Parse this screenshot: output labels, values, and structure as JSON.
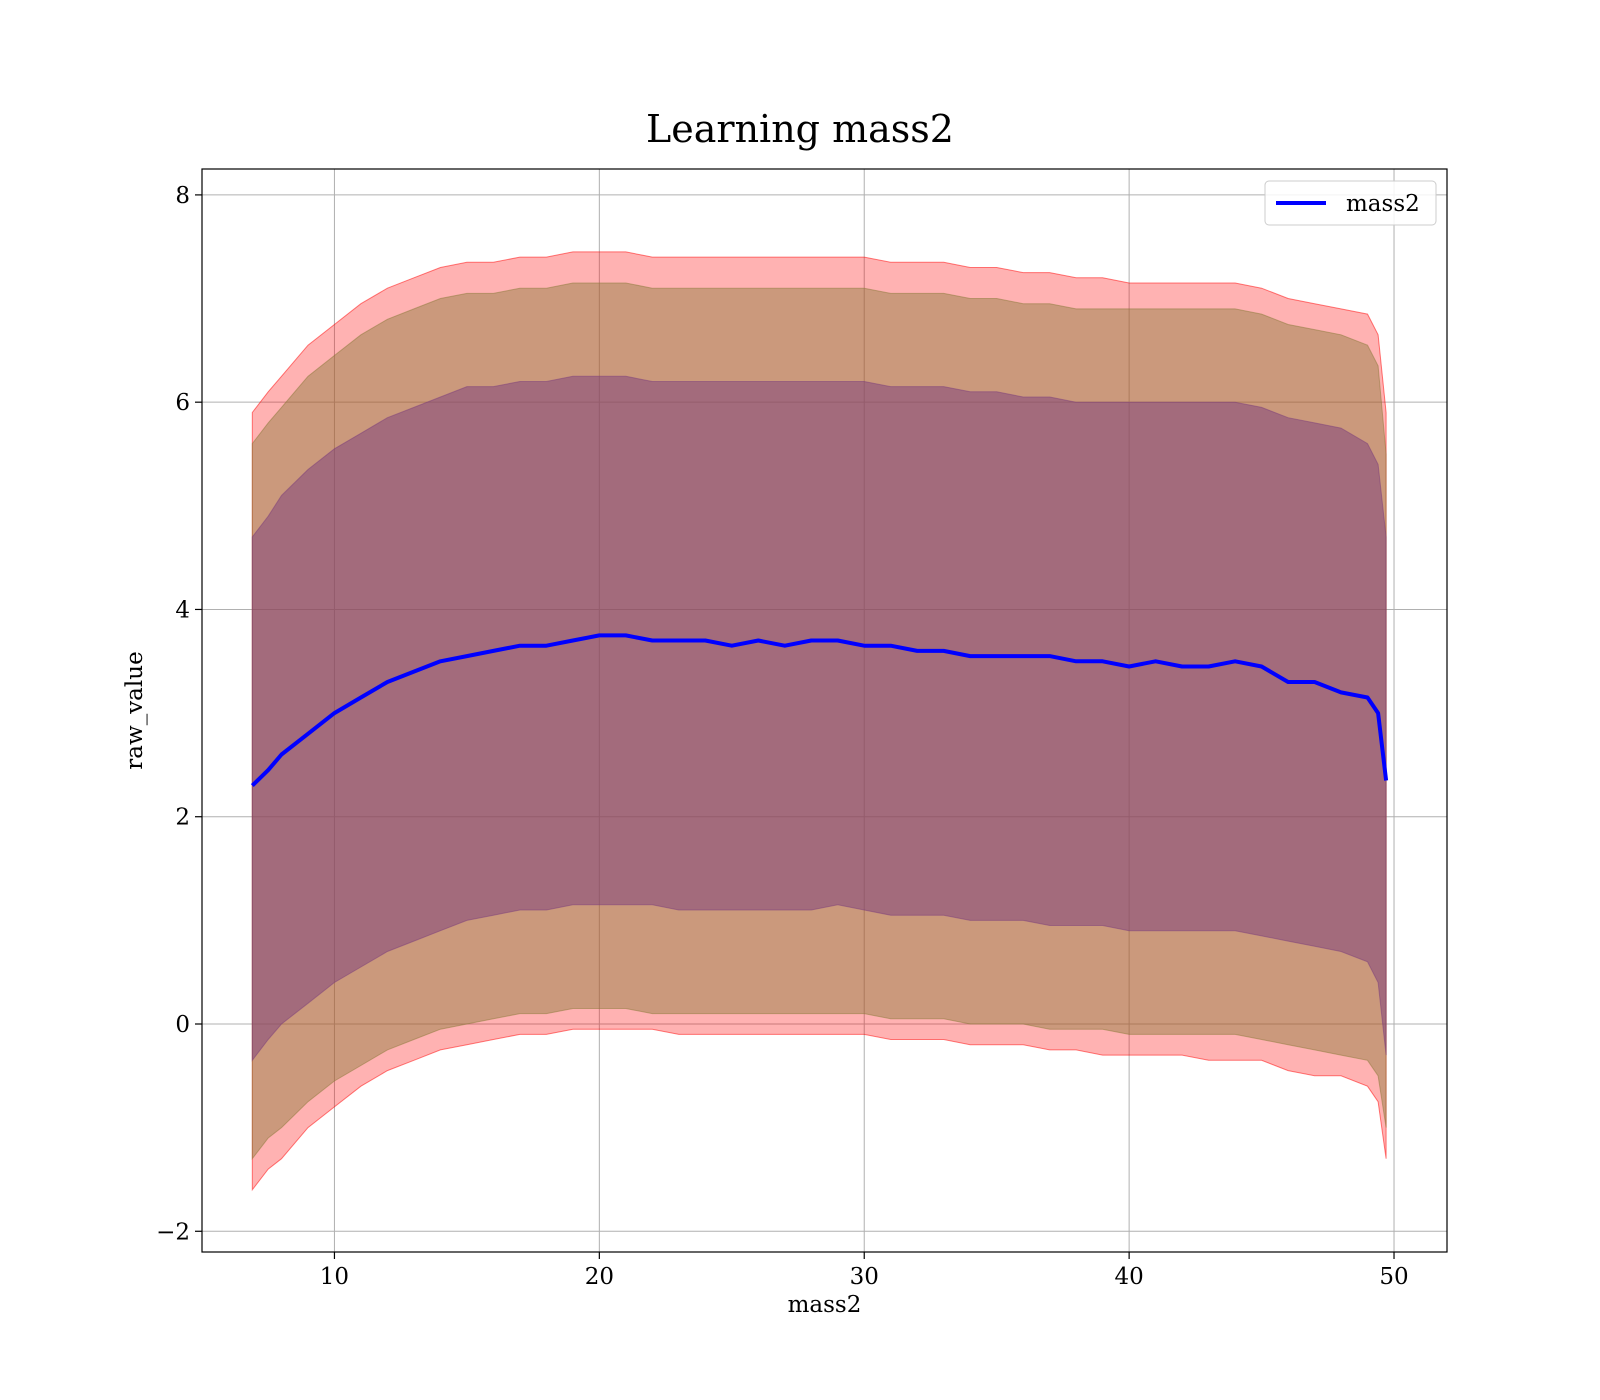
{
  "chart_data": {
    "type": "line",
    "title": "Learning mass2",
    "xlabel": "mass2",
    "ylabel": "raw_value",
    "xlim": [
      5,
      52
    ],
    "ylim": [
      -2.2,
      8.25
    ],
    "xticks": [
      10,
      20,
      30,
      40,
      50
    ],
    "yticks": [
      -2,
      0,
      2,
      4,
      6,
      8
    ],
    "xtick_labels": [
      "10",
      "20",
      "30",
      "40",
      "50"
    ],
    "ytick_labels": [
      "−2",
      "0",
      "2",
      "4",
      "6",
      "8"
    ],
    "grid": true,
    "legend": {
      "position": "top-right",
      "entries": [
        "mass2"
      ]
    },
    "colors": {
      "line": "#0000ff",
      "outer_band": "#ff0000",
      "middle_band": "#8b7a3a",
      "inner_band": "#7b3d7b"
    },
    "x": [
      6.9,
      7.5,
      8,
      9,
      10,
      11,
      12,
      13,
      14,
      15,
      16,
      17,
      18,
      19,
      20,
      21,
      22,
      23,
      24,
      25,
      26,
      27,
      28,
      29,
      30,
      31,
      32,
      33,
      34,
      35,
      36,
      37,
      38,
      39,
      40,
      41,
      42,
      43,
      44,
      45,
      46,
      47,
      48,
      49,
      49.4,
      49.7
    ],
    "series": [
      {
        "name": "mass2",
        "values": [
          2.3,
          2.45,
          2.6,
          2.8,
          3.0,
          3.15,
          3.3,
          3.4,
          3.5,
          3.55,
          3.6,
          3.65,
          3.65,
          3.7,
          3.75,
          3.75,
          3.7,
          3.7,
          3.7,
          3.65,
          3.7,
          3.65,
          3.7,
          3.7,
          3.65,
          3.65,
          3.6,
          3.6,
          3.55,
          3.55,
          3.55,
          3.55,
          3.5,
          3.5,
          3.45,
          3.5,
          3.45,
          3.45,
          3.5,
          3.45,
          3.3,
          3.3,
          3.2,
          3.15,
          3.0,
          2.35
        ]
      }
    ],
    "bands": [
      {
        "role": "outer",
        "lower": [
          -1.6,
          -1.4,
          -1.3,
          -1.0,
          -0.8,
          -0.6,
          -0.45,
          -0.35,
          -0.25,
          -0.2,
          -0.15,
          -0.1,
          -0.1,
          -0.05,
          -0.05,
          -0.05,
          -0.05,
          -0.1,
          -0.1,
          -0.1,
          -0.1,
          -0.1,
          -0.1,
          -0.1,
          -0.1,
          -0.15,
          -0.15,
          -0.15,
          -0.2,
          -0.2,
          -0.2,
          -0.25,
          -0.25,
          -0.3,
          -0.3,
          -0.3,
          -0.3,
          -0.35,
          -0.35,
          -0.35,
          -0.45,
          -0.5,
          -0.5,
          -0.6,
          -0.75,
          -1.3
        ],
        "upper": [
          5.9,
          6.1,
          6.25,
          6.55,
          6.75,
          6.95,
          7.1,
          7.2,
          7.3,
          7.35,
          7.35,
          7.4,
          7.4,
          7.45,
          7.45,
          7.45,
          7.4,
          7.4,
          7.4,
          7.4,
          7.4,
          7.4,
          7.4,
          7.4,
          7.4,
          7.35,
          7.35,
          7.35,
          7.3,
          7.3,
          7.25,
          7.25,
          7.2,
          7.2,
          7.15,
          7.15,
          7.15,
          7.15,
          7.15,
          7.1,
          7.0,
          6.95,
          6.9,
          6.85,
          6.65,
          5.9
        ]
      },
      {
        "role": "middle",
        "lower": [
          -1.3,
          -1.1,
          -1.0,
          -0.75,
          -0.55,
          -0.4,
          -0.25,
          -0.15,
          -0.05,
          0.0,
          0.05,
          0.1,
          0.1,
          0.15,
          0.15,
          0.15,
          0.1,
          0.1,
          0.1,
          0.1,
          0.1,
          0.1,
          0.1,
          0.1,
          0.1,
          0.05,
          0.05,
          0.05,
          0.0,
          0.0,
          0.0,
          -0.05,
          -0.05,
          -0.05,
          -0.1,
          -0.1,
          -0.1,
          -0.1,
          -0.1,
          -0.15,
          -0.2,
          -0.25,
          -0.3,
          -0.35,
          -0.5,
          -1.0
        ],
        "upper": [
          5.6,
          5.8,
          5.95,
          6.25,
          6.45,
          6.65,
          6.8,
          6.9,
          7.0,
          7.05,
          7.05,
          7.1,
          7.1,
          7.15,
          7.15,
          7.15,
          7.1,
          7.1,
          7.1,
          7.1,
          7.1,
          7.1,
          7.1,
          7.1,
          7.1,
          7.05,
          7.05,
          7.05,
          7.0,
          7.0,
          6.95,
          6.95,
          6.9,
          6.9,
          6.9,
          6.9,
          6.9,
          6.9,
          6.9,
          6.85,
          6.75,
          6.7,
          6.65,
          6.55,
          6.35,
          5.5
        ]
      },
      {
        "role": "inner",
        "lower": [
          -0.35,
          -0.15,
          0.0,
          0.2,
          0.4,
          0.55,
          0.7,
          0.8,
          0.9,
          1.0,
          1.05,
          1.1,
          1.1,
          1.15,
          1.15,
          1.15,
          1.15,
          1.1,
          1.1,
          1.1,
          1.1,
          1.1,
          1.1,
          1.15,
          1.1,
          1.05,
          1.05,
          1.05,
          1.0,
          1.0,
          1.0,
          0.95,
          0.95,
          0.95,
          0.9,
          0.9,
          0.9,
          0.9,
          0.9,
          0.85,
          0.8,
          0.75,
          0.7,
          0.6,
          0.4,
          -0.3
        ],
        "upper": [
          4.7,
          4.9,
          5.1,
          5.35,
          5.55,
          5.7,
          5.85,
          5.95,
          6.05,
          6.15,
          6.15,
          6.2,
          6.2,
          6.25,
          6.25,
          6.25,
          6.2,
          6.2,
          6.2,
          6.2,
          6.2,
          6.2,
          6.2,
          6.2,
          6.2,
          6.15,
          6.15,
          6.15,
          6.1,
          6.1,
          6.05,
          6.05,
          6.0,
          6.0,
          6.0,
          6.0,
          6.0,
          6.0,
          6.0,
          5.95,
          5.85,
          5.8,
          5.75,
          5.6,
          5.4,
          4.7
        ]
      }
    ]
  }
}
